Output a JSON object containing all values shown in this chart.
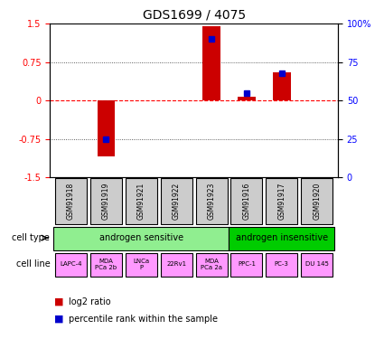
{
  "title": "GDS1699 / 4075",
  "samples": [
    "GSM91918",
    "GSM91919",
    "GSM91921",
    "GSM91922",
    "GSM91923",
    "GSM91916",
    "GSM91917",
    "GSM91920"
  ],
  "log2_ratio": [
    0.0,
    -1.1,
    0.0,
    0.0,
    1.45,
    0.08,
    0.55,
    0.0
  ],
  "percentile_rank": [
    null,
    25,
    null,
    null,
    90,
    55,
    68,
    null
  ],
  "ylim": [
    -1.5,
    1.5
  ],
  "y_ticks_left": [
    -1.5,
    -0.75,
    0,
    0.75,
    1.5
  ],
  "y_ticks_right": [
    0,
    25,
    50,
    75,
    100
  ],
  "cell_type_groups": [
    {
      "label": "androgen sensitive",
      "start": 0,
      "end": 4,
      "color": "#90EE90"
    },
    {
      "label": "androgen insensitive",
      "start": 5,
      "end": 7,
      "color": "#00CC00"
    }
  ],
  "cell_lines": [
    "LAPC-4",
    "MDA\nPCa 2b",
    "LNCa\nP",
    "22Rv1",
    "MDA\nPCa 2a",
    "PPC-1",
    "PC-3",
    "DU 145"
  ],
  "cell_line_color": "#FF99FF",
  "sample_label_color": "#BBBBBB",
  "bar_color": "#CC0000",
  "dot_color": "#0000CC",
  "zero_line_color": "#FF0000",
  "grid_color": "#333333",
  "legend_bar_label": "log2 ratio",
  "legend_dot_label": "percentile rank within the sample"
}
